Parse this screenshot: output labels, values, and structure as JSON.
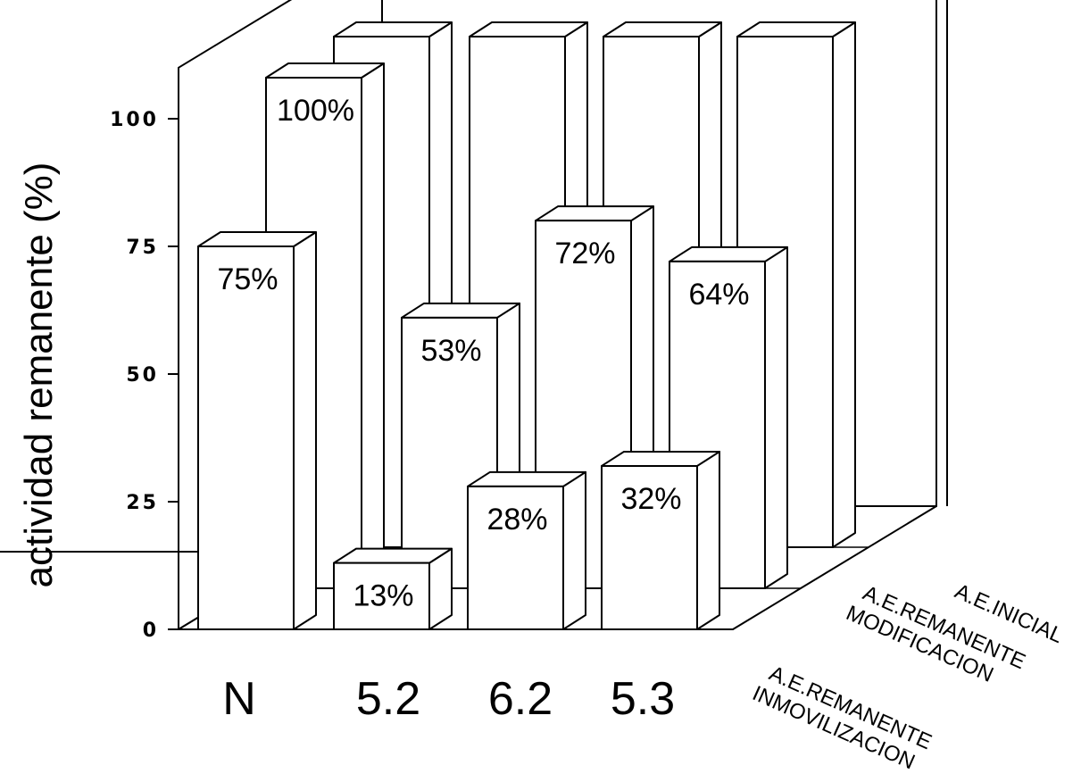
{
  "chart_data": {
    "type": "bar",
    "style": "3d-grouped",
    "ylabel": "actividad remanente (%)",
    "ylim": [
      0,
      100
    ],
    "yticks": [
      "0",
      "25",
      "50",
      "75",
      "100"
    ],
    "categories": [
      "N",
      "5.2",
      "6.2",
      "5.3"
    ],
    "series": [
      {
        "name": "A.E.REMANENTE INMOVILIZACION",
        "label_lines": [
          "A.E.REMANENTE",
          "INMOVILIZACION"
        ],
        "values": [
          75,
          13,
          28,
          32
        ]
      },
      {
        "name": "A.E.REMANENTE MODIFICACION",
        "label_lines": [
          "A.E.REMANENTE",
          "MODIFICACION"
        ],
        "values": [
          100,
          53,
          72,
          64
        ]
      },
      {
        "name": "A.E.INICIAL",
        "label_lines": [
          "A.E.INICIAL"
        ],
        "values": [
          100,
          100,
          100,
          100
        ]
      }
    ],
    "data_labels": [
      [
        "75%",
        "13%",
        "28%",
        "32%"
      ],
      [
        "100%",
        "53%",
        "72%",
        "64%"
      ],
      [
        "",
        "",
        "",
        ""
      ]
    ],
    "grid": false,
    "colors": {
      "bar_fill": "#ffffff",
      "outline": "#000000"
    }
  }
}
